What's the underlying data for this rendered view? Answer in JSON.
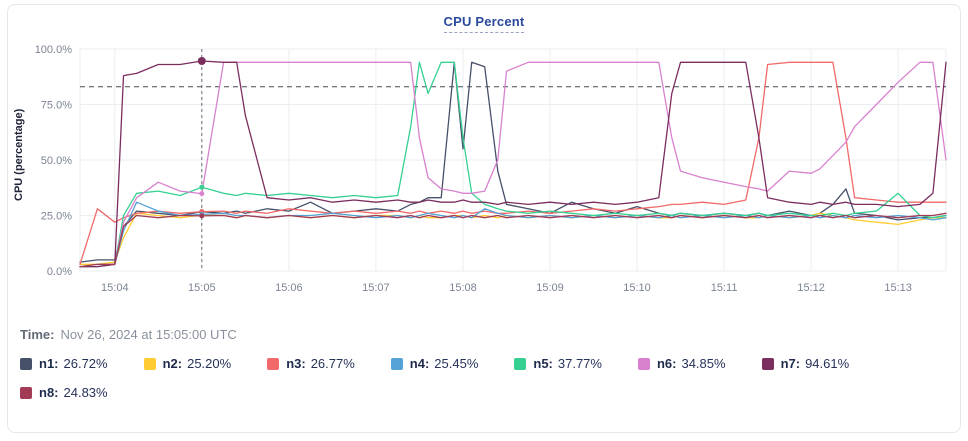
{
  "card": {
    "title": "CPU Percent"
  },
  "time_row": {
    "label": "Time:",
    "value": "Nov 26, 2024 at 15:05:00 UTC"
  },
  "legend": [
    {
      "id": "n1",
      "label": "n1:",
      "value": "26.72%",
      "color": "#475069"
    },
    {
      "id": "n2",
      "label": "n2:",
      "value": "25.20%",
      "color": "#FFCD32"
    },
    {
      "id": "n3",
      "label": "n3:",
      "value": "26.77%",
      "color": "#F16969"
    },
    {
      "id": "n4",
      "label": "n4:",
      "value": "25.45%",
      "color": "#55A3D6"
    },
    {
      "id": "n5",
      "label": "n5:",
      "value": "37.77%",
      "color": "#35D092"
    },
    {
      "id": "n6",
      "label": "n6:",
      "value": "34.85%",
      "color": "#D881CE"
    },
    {
      "id": "n7",
      "label": "n7:",
      "value": "94.61%",
      "color": "#7B2D5E"
    },
    {
      "id": "n8",
      "label": "n8:",
      "value": "24.83%",
      "color": "#A23B55"
    }
  ],
  "chart_data": {
    "type": "line",
    "title": "CPU Percent",
    "xlabel": "",
    "ylabel": "CPU (percentage)",
    "ylim": [
      0,
      100
    ],
    "xlim": [
      3.6,
      13.55
    ],
    "grid": true,
    "legend_position": "bottom",
    "threshold": 83,
    "y_ticks": [
      {
        "value": 100,
        "label": "100.0%"
      },
      {
        "value": 75,
        "label": "75.0%"
      },
      {
        "value": 50,
        "label": "50.0%"
      },
      {
        "value": 25,
        "label": "25.0%"
      },
      {
        "value": 0,
        "label": "0.0%"
      }
    ],
    "x_ticks": [
      {
        "value": 4,
        "label": "15:04"
      },
      {
        "value": 5,
        "label": "15:05"
      },
      {
        "value": 6,
        "label": "15:06"
      },
      {
        "value": 7,
        "label": "15:07"
      },
      {
        "value": 8,
        "label": "15:08"
      },
      {
        "value": 9,
        "label": "15:09"
      },
      {
        "value": 10,
        "label": "15:10"
      },
      {
        "value": 11,
        "label": "15:11"
      },
      {
        "value": 12,
        "label": "15:12"
      },
      {
        "value": 13,
        "label": "15:13"
      }
    ],
    "x": [
      3.6,
      3.8,
      4.0,
      4.1,
      4.25,
      4.5,
      4.75,
      5.0,
      5.25,
      5.4,
      5.5,
      5.75,
      6.0,
      6.25,
      6.5,
      6.75,
      7.0,
      7.25,
      7.4,
      7.5,
      7.6,
      7.75,
      7.9,
      8.0,
      8.1,
      8.25,
      8.4,
      8.5,
      8.75,
      9.0,
      9.25,
      9.5,
      9.75,
      10.0,
      10.25,
      10.4,
      10.5,
      10.75,
      11.0,
      11.25,
      11.4,
      11.5,
      11.75,
      12.0,
      12.1,
      12.25,
      12.4,
      12.5,
      12.75,
      13.0,
      13.25,
      13.4,
      13.55
    ],
    "series": [
      {
        "name": "n1",
        "color": "#475069",
        "values": [
          4,
          5,
          5,
          20,
          27,
          26,
          25,
          26.72,
          26,
          27,
          26,
          28,
          27,
          31,
          26,
          27,
          28,
          27,
          30,
          31,
          33,
          33,
          94,
          55,
          94,
          92,
          45,
          30,
          28,
          26,
          31,
          28,
          26,
          29,
          26,
          25,
          26,
          25,
          26,
          25,
          26,
          25,
          27,
          25,
          26,
          30,
          37,
          26,
          25,
          23,
          24,
          24,
          25
        ]
      },
      {
        "name": "n2",
        "color": "#FFCD32",
        "values": [
          3,
          3,
          4,
          15,
          26,
          25,
          24,
          25.2,
          25,
          24,
          25,
          24,
          25,
          24,
          25,
          24,
          25,
          25,
          24,
          25,
          24,
          24,
          25,
          25,
          24,
          25,
          24,
          25,
          24,
          25,
          24,
          25,
          24,
          25,
          24,
          24,
          25,
          24,
          25,
          24,
          24,
          25,
          24,
          25,
          26,
          25,
          24,
          23,
          22,
          21,
          23,
          24,
          24
        ]
      },
      {
        "name": "n3",
        "color": "#F16969",
        "values": [
          3,
          28,
          22,
          24,
          26,
          27,
          26,
          26.77,
          27,
          26,
          27,
          26,
          28,
          27,
          26,
          27,
          26,
          27,
          26,
          27,
          26,
          27,
          26,
          27,
          26,
          27,
          26,
          26,
          27,
          26,
          27,
          28,
          27,
          28,
          29,
          30,
          30,
          31,
          30,
          32,
          60,
          93,
          94,
          94,
          94,
          94,
          60,
          33,
          32,
          31,
          31,
          31,
          31
        ]
      },
      {
        "name": "n4",
        "color": "#55A3D6",
        "values": [
          2,
          2,
          3,
          18,
          31,
          27,
          25,
          25.45,
          26,
          25,
          25,
          24,
          25,
          25,
          26,
          25,
          24,
          25,
          24,
          25,
          26,
          25,
          24,
          25,
          24,
          28,
          26,
          25,
          24,
          25,
          24,
          25,
          24,
          25,
          24,
          25,
          24,
          25,
          24,
          25,
          24,
          25,
          24,
          25,
          24,
          25,
          24,
          25,
          24,
          25,
          24,
          23,
          24
        ]
      },
      {
        "name": "n5",
        "color": "#35D092",
        "values": [
          2,
          2,
          3,
          25,
          35,
          36,
          34,
          37.77,
          35,
          34,
          35,
          34,
          35,
          34,
          33,
          34,
          33,
          34,
          65,
          94,
          80,
          94,
          94,
          60,
          35,
          30,
          28,
          27,
          26,
          27,
          26,
          25,
          26,
          25,
          26,
          25,
          26,
          25,
          26,
          25,
          26,
          25,
          26,
          25,
          25,
          26,
          25,
          26,
          27,
          35,
          25,
          24,
          25
        ]
      },
      {
        "name": "n6",
        "color": "#D881CE",
        "values": [
          2,
          2,
          3,
          22,
          33,
          40,
          36,
          34.85,
          94,
          94,
          94,
          94,
          94,
          94,
          94,
          94,
          94,
          94,
          94,
          60,
          42,
          37,
          36,
          35,
          35,
          36,
          50,
          90,
          94,
          94,
          94,
          94,
          94,
          94,
          94,
          60,
          45,
          42,
          40,
          38,
          37,
          36,
          45,
          44,
          46,
          52,
          58,
          65,
          75,
          85,
          94,
          94,
          50
        ]
      },
      {
        "name": "n7",
        "color": "#7B2D5E",
        "values": [
          2,
          2,
          3,
          88,
          89,
          93,
          93,
          94.61,
          94,
          94,
          70,
          33,
          32,
          33,
          31,
          32,
          31,
          32,
          31,
          31,
          32,
          31,
          31,
          32,
          31,
          31,
          30,
          31,
          30,
          31,
          30,
          31,
          30,
          31,
          33,
          80,
          94,
          94,
          94,
          94,
          60,
          33,
          31,
          30,
          31,
          30,
          31,
          30,
          30,
          29,
          30,
          35,
          94
        ]
      },
      {
        "name": "n8",
        "color": "#A23B55",
        "values": [
          2,
          3,
          3,
          20,
          25,
          24,
          25,
          24.83,
          25,
          24,
          25,
          24,
          25,
          24,
          25,
          24,
          25,
          24,
          25,
          24,
          25,
          24,
          25,
          24,
          25,
          24,
          25,
          24,
          25,
          24,
          25,
          24,
          25,
          24,
          25,
          24,
          25,
          24,
          25,
          24,
          25,
          24,
          25,
          24,
          25,
          24,
          25,
          24,
          25,
          24,
          25,
          25,
          26
        ]
      }
    ],
    "crosshair": {
      "x": 5.0,
      "time": "15:05:00",
      "values": {
        "n1": 26.72,
        "n2": 25.2,
        "n3": 26.77,
        "n4": 25.45,
        "n5": 37.77,
        "n6": 34.85,
        "n7": 94.61,
        "n8": 24.83
      }
    }
  }
}
